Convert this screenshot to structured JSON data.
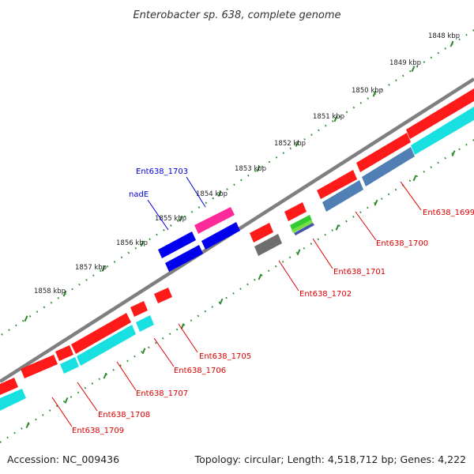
{
  "map": {
    "title": "Enterobacter sp. 638, complete genome",
    "accession": "Accession: NC_009436",
    "topology": "Topology: circular; Length: 4,518,712 bp; Genes: 4,222"
  },
  "colors": {
    "backbone": "#7f7f7f",
    "tick": "#2e8b2e",
    "red_cds": "#ff1a1a",
    "cyan_cds": "#19e0e0",
    "steel": "#4f7fb5",
    "blue_cds": "#0000ee",
    "pink_cds": "#ff2a9a",
    "gray_cds": "#6e6e6e",
    "green_cds": "#2ecc2e",
    "red_label": "#dd0000",
    "blue_label": "#0000dd"
  },
  "scale_labels": [
    "1848 kbp",
    "1849 kbp",
    "1850 kbp",
    "1851 kbp",
    "1852 kbp",
    "1853 kbp",
    "1854 kbp",
    "1855 kbp",
    "1856 kbp",
    "1857 kbp",
    "1858 kbp"
  ],
  "gene_labels": {
    "ent1699": "Ent638_1699",
    "ent1700": "Ent638_1700",
    "ent1701": "Ent638_1701",
    "ent1702": "Ent638_1702",
    "ent1703": "Ent638_1703",
    "nadE": "nadE",
    "ent1705": "Ent638_1705",
    "ent1706": "Ent638_1706",
    "ent1707": "Ent638_1707",
    "ent1708": "Ent638_1708",
    "ent1709": "Ent638_1709"
  }
}
